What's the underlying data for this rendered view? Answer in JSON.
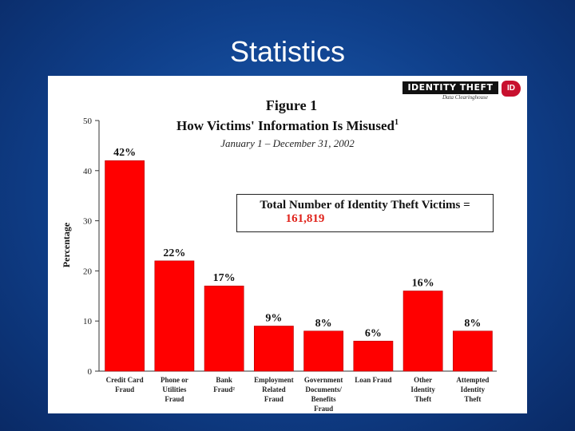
{
  "slide": {
    "title": "Statistics"
  },
  "logo": {
    "text": "IDENTITY THEFT",
    "subtext": "Data Clearinghouse",
    "badge": "ID"
  },
  "callout": {
    "label": "Total Number of Identity Theft Victims =",
    "value": "161,819"
  },
  "colors": {
    "background": "#0f3f8a",
    "bar": "#ff0000",
    "bar_edge": "#b00000",
    "callout_value": "#e0231b"
  },
  "chart_data": {
    "type": "bar",
    "title": "Figure 1",
    "subtitle": "How Victims' Information Is Misused",
    "title_superscript": "1",
    "date_range": "January 1 – December 31, 2002",
    "ylabel": "Percentage",
    "xlabel": "",
    "ylim": [
      0,
      50
    ],
    "yticks": [
      0,
      10,
      20,
      30,
      40,
      50
    ],
    "grid": false,
    "categories": [
      [
        "Credit Card",
        "Fraud"
      ],
      [
        "Phone or",
        "Utilities",
        "Fraud"
      ],
      [
        "Bank",
        "Fraud²"
      ],
      [
        "Employment",
        "Related",
        "Fraud"
      ],
      [
        "Government",
        "Documents/",
        "Benefits",
        "Fraud"
      ],
      [
        "Loan Fraud"
      ],
      [
        "Other",
        "Identity",
        "Theft"
      ],
      [
        "Attempted",
        "Identity",
        "Theft"
      ]
    ],
    "values": [
      42,
      22,
      17,
      9,
      8,
      6,
      16,
      8
    ],
    "data_labels": [
      "42%",
      "22%",
      "17%",
      "9%",
      "8%",
      "6%",
      "16%",
      "8%"
    ]
  }
}
